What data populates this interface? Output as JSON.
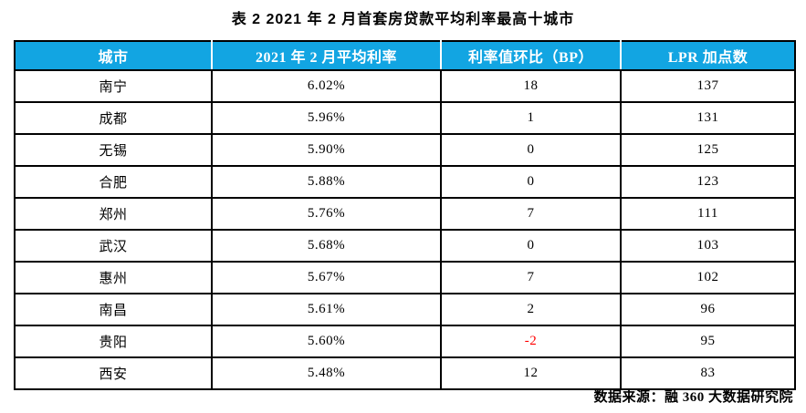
{
  "title": "表 2  2021 年 2 月首套房贷款平均利率最高十城市",
  "table": {
    "header_bg": "#12a5e2",
    "header_text_color": "#ffffff",
    "negative_color": "#ff0000",
    "columns": [
      "城市",
      "2021 年 2 月平均利率",
      "利率值环比（BP）",
      "LPR 加点数"
    ],
    "rows": [
      {
        "city": "南宁",
        "rate": "6.02%",
        "bp": "18",
        "lpr": "137"
      },
      {
        "city": "成都",
        "rate": "5.96%",
        "bp": "1",
        "lpr": "131"
      },
      {
        "city": "无锡",
        "rate": "5.90%",
        "bp": "0",
        "lpr": "125"
      },
      {
        "city": "合肥",
        "rate": "5.88%",
        "bp": "0",
        "lpr": "123"
      },
      {
        "city": "郑州",
        "rate": "5.76%",
        "bp": "7",
        "lpr": "111"
      },
      {
        "city": "武汉",
        "rate": "5.68%",
        "bp": "0",
        "lpr": "103"
      },
      {
        "city": "惠州",
        "rate": "5.67%",
        "bp": "7",
        "lpr": "102"
      },
      {
        "city": "南昌",
        "rate": "5.61%",
        "bp": "2",
        "lpr": "96"
      },
      {
        "city": "贵阳",
        "rate": "5.60%",
        "bp": "-2",
        "lpr": "95"
      },
      {
        "city": "西安",
        "rate": "5.48%",
        "bp": "12",
        "lpr": "83"
      }
    ]
  },
  "footer": {
    "source": "数据来源：融 360 大数据研究院"
  }
}
